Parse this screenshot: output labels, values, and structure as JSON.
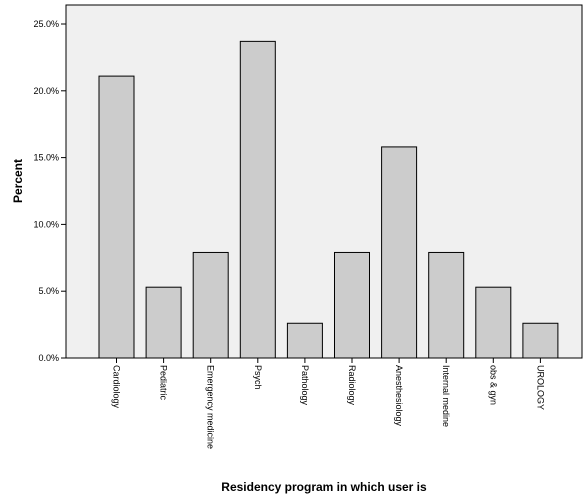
{
  "chart_data": {
    "type": "bar",
    "title": "",
    "xlabel": "Residency program in which user is",
    "ylabel": "Percent",
    "categories": [
      "Cardiology",
      "Pediatric",
      "Emergency medicine",
      "Psych",
      "Pathology",
      "Radiology",
      "Anesthesiology",
      "Internal medine",
      "obs & gyn",
      "UROLOGY"
    ],
    "values": [
      21.1,
      5.3,
      7.9,
      23.7,
      2.6,
      7.9,
      15.8,
      7.9,
      5.3,
      2.6
    ],
    "ylim": [
      0,
      25
    ],
    "yticks": [
      0,
      5,
      10,
      15,
      20,
      25
    ],
    "ytick_labels": [
      "0.0%",
      "5.0%",
      "10.0%",
      "15.0%",
      "20.0%",
      "25.0%"
    ],
    "grid": false,
    "colors": {
      "plot_background": "#f0f0f0",
      "bar_fill": "#cccccc",
      "bar_stroke": "#000000"
    }
  }
}
